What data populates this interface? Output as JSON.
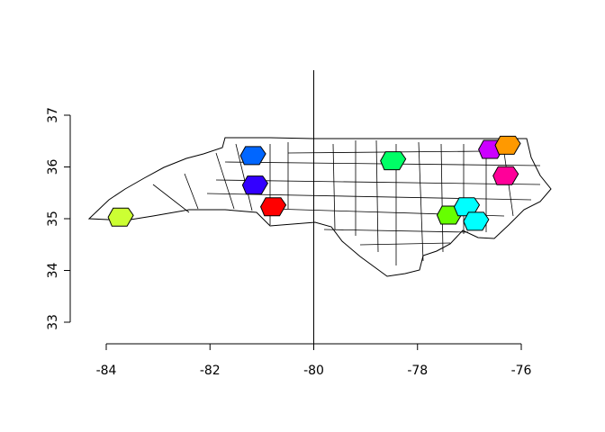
{
  "chart_data": {
    "type": "map",
    "region": "North Carolina counties",
    "xlim": [
      -84.5,
      -75.5
    ],
    "ylim": [
      33,
      37
    ],
    "x_ticks": [
      "-84",
      "-82",
      "-80",
      "-78",
      "-76"
    ],
    "y_ticks": [
      "33",
      "34",
      "35",
      "36",
      "37"
    ],
    "reference_line": {
      "orientation": "vertical",
      "x": -80
    },
    "highlighted_counties": [
      {
        "lon": -83.72,
        "lat": 35.03,
        "color": "#ccff33"
      },
      {
        "lon": -80.78,
        "lat": 35.23,
        "color": "#ff0000"
      },
      {
        "lon": -81.13,
        "lat": 35.65,
        "color": "#3300ff"
      },
      {
        "lon": -81.17,
        "lat": 36.22,
        "color": "#0066ff"
      },
      {
        "lon": -78.47,
        "lat": 36.12,
        "color": "#00ff66"
      },
      {
        "lon": -77.38,
        "lat": 35.07,
        "color": "#66ff00"
      },
      {
        "lon": -77.05,
        "lat": 35.23,
        "color": "#00ffff"
      },
      {
        "lon": -76.87,
        "lat": 34.95,
        "color": "#00ffff"
      },
      {
        "lon": -76.3,
        "lat": 35.83,
        "color": "#ff0099"
      },
      {
        "lon": -76.58,
        "lat": 36.34,
        "color": "#cc00ff"
      },
      {
        "lon": -76.26,
        "lat": 36.42,
        "color": "#ff9900"
      }
    ]
  }
}
